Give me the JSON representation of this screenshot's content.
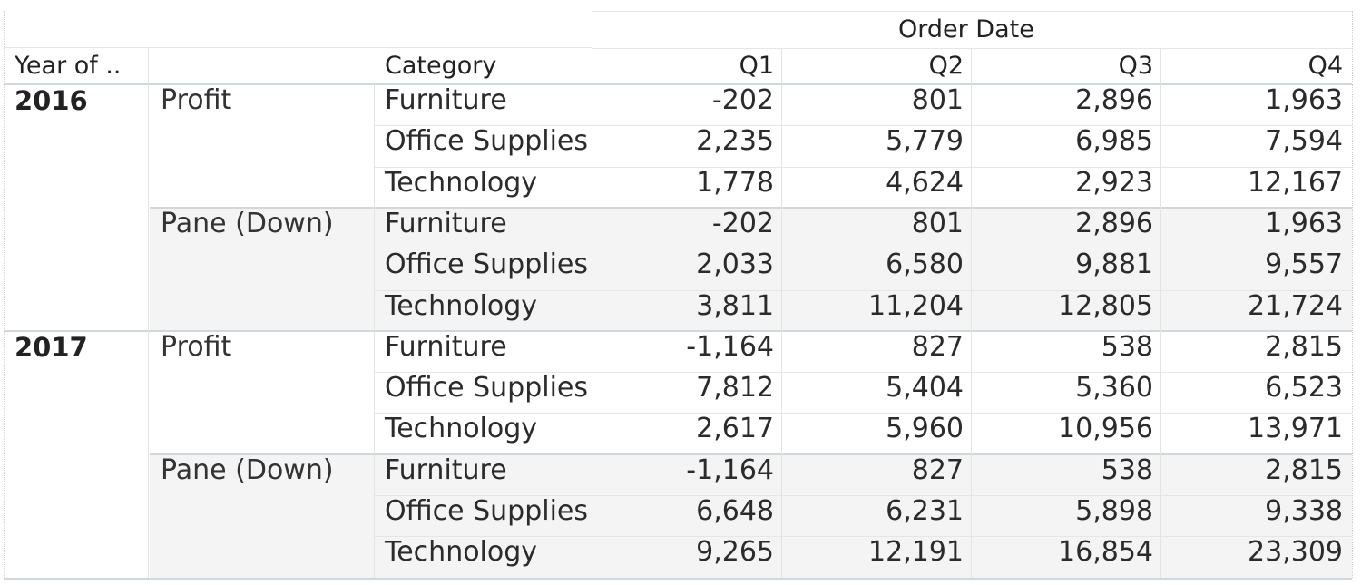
{
  "header": {
    "column_group": "Order Date",
    "year_label": "Year of ..",
    "category_label": "Category",
    "quarters": [
      "Q1",
      "Q2",
      "Q3",
      "Q4"
    ]
  },
  "chart_data": {
    "type": "table",
    "title": "",
    "column_header": "Order Date",
    "columns": [
      "Q1",
      "Q2",
      "Q3",
      "Q4"
    ],
    "years": [
      {
        "year": "2016",
        "measures": [
          {
            "name": "Profit",
            "rows": [
              {
                "category": "Furniture",
                "values": [
                  "-202",
                  "801",
                  "2,896",
                  "1,963"
                ]
              },
              {
                "category": "Office Supplies",
                "values": [
                  "2,235",
                  "5,779",
                  "6,985",
                  "7,594"
                ]
              },
              {
                "category": "Technology",
                "values": [
                  "1,778",
                  "4,624",
                  "2,923",
                  "12,167"
                ]
              }
            ]
          },
          {
            "name": "Pane (Down)",
            "rows": [
              {
                "category": "Furniture",
                "values": [
                  "-202",
                  "801",
                  "2,896",
                  "1,963"
                ]
              },
              {
                "category": "Office Supplies",
                "values": [
                  "2,033",
                  "6,580",
                  "9,881",
                  "9,557"
                ]
              },
              {
                "category": "Technology",
                "values": [
                  "3,811",
                  "11,204",
                  "12,805",
                  "21,724"
                ]
              }
            ]
          }
        ]
      },
      {
        "year": "2017",
        "measures": [
          {
            "name": "Profit",
            "rows": [
              {
                "category": "Furniture",
                "values": [
                  "-1,164",
                  "827",
                  "538",
                  "2,815"
                ]
              },
              {
                "category": "Office Supplies",
                "values": [
                  "7,812",
                  "5,404",
                  "5,360",
                  "6,523"
                ]
              },
              {
                "category": "Technology",
                "values": [
                  "2,617",
                  "5,960",
                  "10,956",
                  "13,971"
                ]
              }
            ]
          },
          {
            "name": "Pane (Down)",
            "rows": [
              {
                "category": "Furniture",
                "values": [
                  "-1,164",
                  "827",
                  "538",
                  "2,815"
                ]
              },
              {
                "category": "Office Supplies",
                "values": [
                  "6,648",
                  "6,231",
                  "5,898",
                  "9,338"
                ]
              },
              {
                "category": "Technology",
                "values": [
                  "9,265",
                  "12,191",
                  "16,854",
                  "23,309"
                ]
              }
            ]
          }
        ]
      }
    ]
  }
}
